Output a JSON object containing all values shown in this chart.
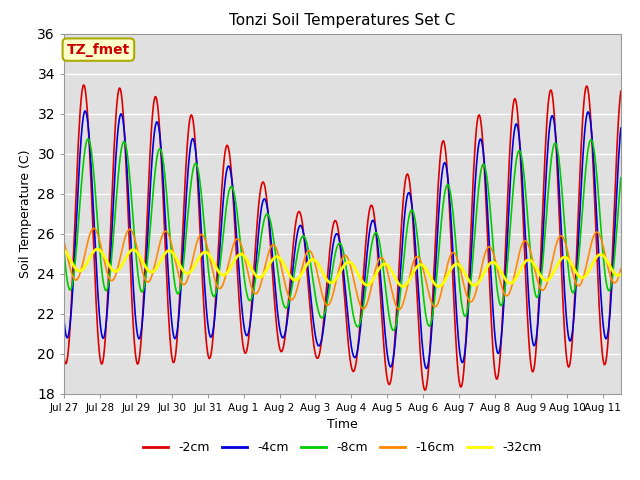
{
  "title": "Tonzi Soil Temperatures Set C",
  "xlabel": "Time",
  "ylabel": "Soil Temperature (C)",
  "ylim": [
    18,
    36
  ],
  "yticks": [
    18,
    20,
    22,
    24,
    26,
    28,
    30,
    32,
    34,
    36
  ],
  "annotation_text": "TZ_fmet",
  "annotation_color": "#cc0000",
  "annotation_bg": "#ffffcc",
  "background_color": "#e0e0e0",
  "series": {
    "-2cm": {
      "color": "#dd0000",
      "lw": 1.2
    },
    "-4cm": {
      "color": "#0000dd",
      "lw": 1.2
    },
    "-8cm": {
      "color": "#00cc00",
      "lw": 1.2
    },
    "-16cm": {
      "color": "#ff8800",
      "lw": 1.2
    },
    "-32cm": {
      "color": "#ffff00",
      "lw": 2.0
    }
  },
  "x_tick_labels": [
    "Jul 27",
    "Jul 28",
    "Jul 29",
    "Jul 30",
    "Jul 31",
    "Aug 1",
    "Aug 2",
    "Aug 3",
    "Aug 4",
    "Aug 5",
    "Aug 6",
    "Aug 7",
    "Aug 8",
    "Aug 9",
    "Aug 10",
    "Aug 11"
  ],
  "n_days": 15.5,
  "samples_per_day": 48
}
